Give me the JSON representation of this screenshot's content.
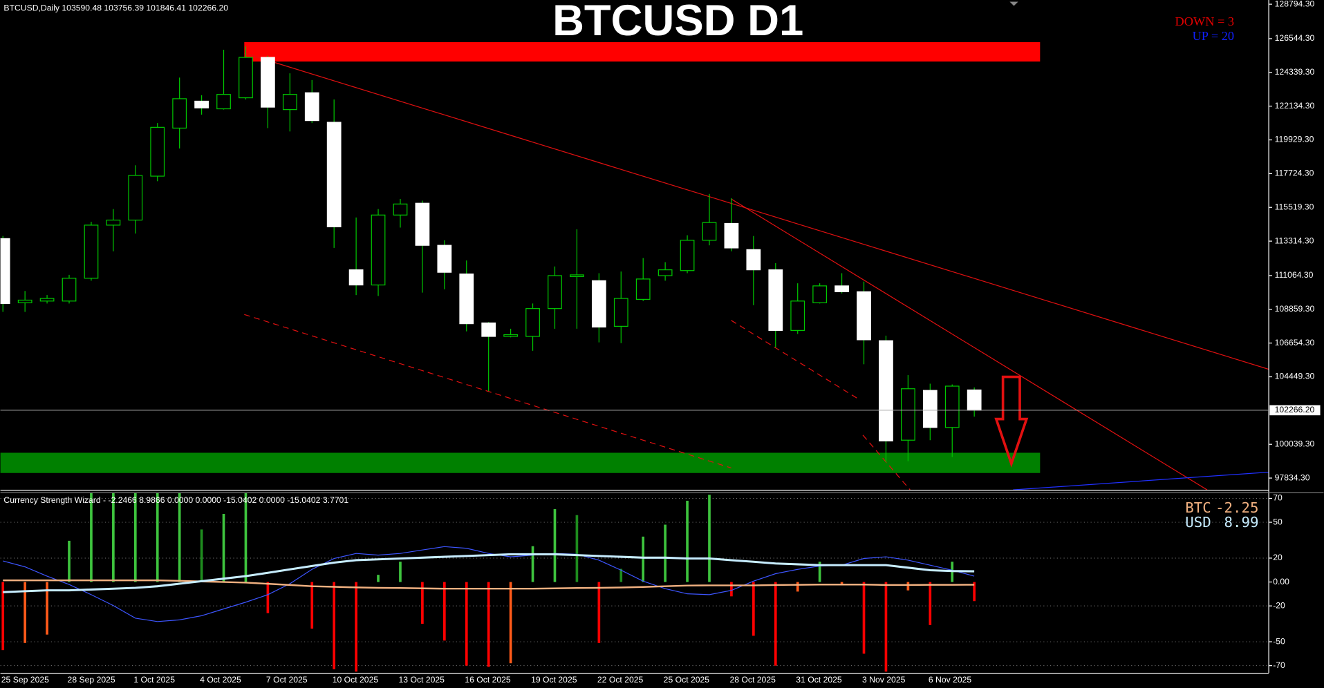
{
  "chart_data": [
    {
      "type": "candlestick",
      "title": "BTCUSD D1",
      "header": "BTCUSD,Daily 103590.48 103756.39 101846.41 102266.20",
      "down_label": "DOWN =  3",
      "up_label": "UP =  20",
      "categories": [
        "25 Sep 2025",
        null,
        null,
        "28 Sep 2025",
        null,
        null,
        "1 Oct 2025",
        null,
        null,
        "4 Oct 2025",
        null,
        null,
        "7 Oct 2025",
        null,
        null,
        "10 Oct 2025",
        null,
        null,
        "13 Oct 2025",
        null,
        null,
        "16 Oct 2025",
        null,
        null,
        "19 Oct 2025",
        null,
        null,
        "22 Oct 2025",
        null,
        null,
        "25 Oct 2025",
        null,
        null,
        "28 Oct 2025",
        null,
        null,
        "31 Oct 2025",
        null,
        null,
        "3 Nov 2025",
        null,
        null,
        "6 Nov 2025",
        null,
        null
      ],
      "open": [
        113480,
        109290,
        109400,
        109400,
        110890,
        114360,
        114690,
        117560,
        120700,
        122460,
        121960,
        122680,
        125320,
        121910,
        123010,
        121080,
        111440,
        110450,
        115020,
        115790,
        113040,
        111170,
        107970,
        107090,
        107090,
        108910,
        111000,
        110730,
        107750,
        109510,
        111060,
        111390,
        113370,
        114470,
        112760,
        111440,
        107480,
        109290,
        110390,
        110010,
        106810,
        100310,
        103560,
        101140,
        103590.48
      ],
      "high": [
        113650,
        110060,
        109790,
        111110,
        114580,
        115410,
        118270,
        121030,
        124000,
        122850,
        125820,
        126040,
        125430,
        124280,
        123840,
        122570,
        114860,
        115410,
        116070,
        115960,
        113370,
        112050,
        108030,
        107590,
        109240,
        111660,
        114090,
        111220,
        111330,
        112210,
        111940,
        113700,
        116400,
        116120,
        113650,
        111880,
        110560,
        110560,
        111220,
        110670,
        107140,
        104560,
        104000,
        103950,
        103756.39
      ],
      "low": [
        108690,
        108690,
        109240,
        109240,
        110730,
        112650,
        113810,
        117230,
        119370,
        121580,
        121910,
        122570,
        120700,
        120480,
        121030,
        112870,
        109790,
        109730,
        114200,
        109950,
        110170,
        107420,
        103510,
        107030,
        106150,
        107590,
        107590,
        106700,
        106650,
        109400,
        110730,
        111220,
        113040,
        112650,
        109130,
        106370,
        107250,
        109240,
        109900,
        105270,
        98880,
        98940,
        100310,
        99210,
        101846.41
      ],
      "close": [
        109240,
        109460,
        109570,
        110890,
        114360,
        114690,
        117610,
        120750,
        122620,
        122020,
        122900,
        125320,
        122070,
        122900,
        121190,
        114250,
        110450,
        115020,
        115740,
        113040,
        111280,
        107920,
        107090,
        107200,
        108910,
        111060,
        111110,
        107700,
        109570,
        110840,
        111440,
        113370,
        114530,
        112870,
        111440,
        107480,
        109400,
        110390,
        110010,
        106870,
        100260,
        103670,
        101140,
        103840,
        102266.2
      ],
      "colors": {
        "up_body": "#000000",
        "up_outline": "#00c800",
        "down_body": "#ffffff",
        "down_outline": "#ffffff",
        "wick": "#00c800"
      },
      "ylim": [
        97063,
        129070
      ],
      "yticks": [
        {
          "value": 128794.3,
          "label": "128794.30"
        },
        {
          "value": 126544.3,
          "label": "126544.30"
        },
        {
          "value": 124339.3,
          "label": "124339.30"
        },
        {
          "value": 122134.3,
          "label": "122134.30"
        },
        {
          "value": 119929.3,
          "label": "119929.30"
        },
        {
          "value": 117724.3,
          "label": "117724.30"
        },
        {
          "value": 115519.3,
          "label": "115519.30"
        },
        {
          "value": 113314.3,
          "label": "113314.30"
        },
        {
          "value": 111064.3,
          "label": "111064.30"
        },
        {
          "value": 108859.3,
          "label": "108859.30"
        },
        {
          "value": 106654.3,
          "label": "106654.30"
        },
        {
          "value": 104449.3,
          "label": "104449.30"
        },
        {
          "value": 100039.3,
          "label": "100039.30"
        },
        {
          "value": 97834.3,
          "label": "97834.30"
        }
      ],
      "current_price": {
        "value": 102266.2,
        "label": "102266.20"
      }
    },
    {
      "type": "bar",
      "header": "Currency Strength Wizard - -2.2466 8.9866 0.0000 0.0000 -15.0402 0.0000 -15.0402 3.7701",
      "bars": {
        "values": [
          -57,
          -51,
          -44,
          34.5,
          75,
          75,
          75,
          75,
          75,
          44,
          57,
          75,
          -26,
          null,
          -39,
          -73,
          -75,
          6,
          17,
          -35,
          -49,
          -70,
          -71,
          -68,
          30,
          61,
          56,
          -51,
          11,
          38,
          48,
          68,
          73,
          -12,
          -45,
          -70,
          -8,
          17,
          -2,
          -60,
          -75,
          -7,
          -36,
          17,
          -16
        ],
        "colors": [
          "#ff0000",
          "#ff5a1a",
          "#ff5a1a",
          "#3ec43e",
          "#3ec43e",
          "#3ec43e",
          "#3ec43e",
          "#3ec43e",
          "#3ec43e",
          "#1e8c1e",
          "#3ec43e",
          "#3ec43e",
          "#ff0000",
          null,
          "#ff0000",
          "#ff0000",
          "#ff0000",
          "#3ec43e",
          "#3ec43e",
          "#ff0000",
          "#ff0000",
          "#ff0000",
          "#ff0000",
          "#ff5a1a",
          "#3ec43e",
          "#3ec43e",
          "#1e8c1e",
          "#ff0000",
          "#1e8c1e",
          "#3ec43e",
          "#3ec43e",
          "#3ec43e",
          "#3ec43e",
          "#ff0000",
          "#ff0000",
          "#ff0000",
          "#ff5a1a",
          "#3ec43e",
          "#ff5a1a",
          "#ff0000",
          "#ff0000",
          "#ff5a1a",
          "#ff0000",
          "#3ec43e",
          "#ff0000"
        ]
      },
      "series": [
        {
          "color": "#3d55ff",
          "values": [
            17.6,
            12.7,
            4.9,
            -2.1,
            -10.6,
            -19.7,
            -30.3,
            -33.1,
            -31.7,
            -28.2,
            -22.5,
            -16.9,
            -10.6,
            -1.4,
            10.6,
            19.7,
            23.9,
            22.5,
            23.9,
            26.8,
            29.6,
            28.2,
            23.9,
            21.1,
            22.5,
            23.9,
            23.2,
            18.3,
            9.9,
            0.7,
            -5.6,
            -9.9,
            -10.6,
            -7.0,
            0.7,
            7.0,
            10.6,
            13.4,
            14.1,
            19.7,
            21.1,
            18.3,
            14.1,
            9.9,
            4.9
          ]
        },
        {
          "name": "BTC",
          "color": "#f0b080",
          "last_label": "-2.25",
          "values": [
            1.4,
            1.4,
            1.4,
            1.4,
            1.4,
            1.4,
            1.4,
            1.4,
            1.0,
            0.5,
            0,
            -0.5,
            -1.5,
            -2.5,
            -3.5,
            -4.0,
            -4.5,
            -4.9,
            -5.0,
            -5.3,
            -5.6,
            -5.6,
            -5.6,
            -5.6,
            -5.6,
            -5.3,
            -5.0,
            -4.9,
            -4.6,
            -4.2,
            -3.5,
            -3.0,
            -2.8,
            -2.8,
            -2.8,
            -2.5,
            -2.3,
            -2.1,
            -2.1,
            -2.1,
            -2.5,
            -2.5,
            -2.3,
            -2.3,
            -2.25
          ]
        },
        {
          "name": "USD",
          "color": "#c6ecff",
          "last_label": "8.99",
          "values": [
            -8.5,
            -7.7,
            -7.0,
            -7.0,
            -6.3,
            -5.6,
            -4.9,
            -3.5,
            -1.4,
            0.7,
            2.8,
            4.9,
            7.7,
            10.6,
            13.4,
            16.2,
            18.3,
            19.0,
            19.7,
            20.4,
            21.1,
            21.8,
            22.5,
            23.2,
            23.2,
            23.2,
            22.5,
            21.8,
            21.1,
            20.4,
            20.4,
            19.7,
            19.7,
            18.3,
            16.9,
            15.5,
            14.8,
            14.1,
            14.1,
            14.1,
            14.1,
            12.0,
            9.9,
            9.2,
            8.99
          ]
        }
      ],
      "ylim": [
        -76,
        75
      ],
      "yticks": [
        70,
        50,
        20,
        {
          "value": 0,
          "label": "0.00"
        },
        -20,
        -50,
        -70
      ]
    }
  ]
}
